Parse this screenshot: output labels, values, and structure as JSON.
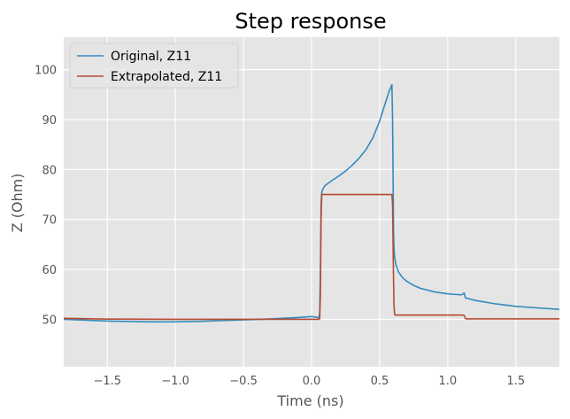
{
  "chart_data": {
    "type": "line",
    "title": "Step response",
    "xlabel": "Time (ns)",
    "ylabel": "Z (Ohm)",
    "xlim": [
      -1.82,
      1.82
    ],
    "ylim": [
      40.5,
      106.5
    ],
    "xticks": [
      -1.5,
      -1.0,
      -0.5,
      0.0,
      0.5,
      1.0,
      1.5
    ],
    "xtick_labels": [
      "−1.5",
      "−1.0",
      "−0.5",
      "0.0",
      "0.5",
      "1.0",
      "1.5"
    ],
    "yticks": [
      50,
      60,
      70,
      80,
      90,
      100
    ],
    "ytick_labels": [
      "50",
      "60",
      "70",
      "80",
      "90",
      "100"
    ],
    "grid": true,
    "legend_position": "top-left",
    "background": "#e5e5e5",
    "grid_color": "#ffffff",
    "series": [
      {
        "name": "Original, Z11",
        "color": "#348abd",
        "x": [
          -1.82,
          -1.5,
          -1.2,
          -1.0,
          -0.8,
          -0.5,
          -0.3,
          -0.1,
          0.0,
          0.04,
          0.055,
          0.06,
          0.065,
          0.07,
          0.075,
          0.085,
          0.1,
          0.15,
          0.2,
          0.25,
          0.3,
          0.35,
          0.4,
          0.45,
          0.5,
          0.53,
          0.55,
          0.57,
          0.58,
          0.59,
          0.595,
          0.6,
          0.602,
          0.605,
          0.61,
          0.62,
          0.64,
          0.67,
          0.7,
          0.75,
          0.8,
          0.9,
          1.0,
          1.1,
          1.115,
          1.12,
          1.13,
          1.2,
          1.35,
          1.5,
          1.65,
          1.82
        ],
        "y": [
          50.0,
          49.65,
          49.5,
          49.5,
          49.6,
          49.9,
          50.1,
          50.35,
          50.55,
          50.4,
          50.3,
          51.5,
          60.0,
          73.0,
          75.5,
          76.2,
          76.8,
          77.8,
          78.7,
          79.7,
          80.9,
          82.3,
          84.0,
          86.3,
          89.7,
          92.3,
          94.0,
          95.7,
          96.3,
          97.0,
          90.0,
          75.0,
          68.0,
          64.5,
          62.5,
          60.9,
          59.4,
          58.3,
          57.6,
          56.8,
          56.2,
          55.5,
          55.1,
          54.9,
          55.1,
          55.3,
          54.3,
          53.8,
          53.1,
          52.6,
          52.3,
          52.0
        ]
      },
      {
        "name": "Extrapolated, Z11",
        "color": "#b74a33",
        "x": [
          -1.82,
          -1.5,
          -1.0,
          -0.5,
          0.0,
          0.05,
          0.06,
          0.065,
          0.07,
          0.075,
          0.1,
          0.3,
          0.5,
          0.58,
          0.59,
          0.595,
          0.6,
          0.605,
          0.61,
          0.615,
          0.7,
          0.9,
          1.1,
          1.12,
          1.125,
          1.13,
          1.135,
          1.2,
          1.5,
          1.82
        ],
        "y": [
          50.2,
          50.05,
          50.0,
          50.0,
          50.0,
          50.0,
          50.1,
          55.0,
          70.0,
          75.0,
          75.0,
          75.0,
          75.0,
          75.0,
          75.0,
          73.0,
          62.0,
          53.0,
          51.0,
          50.85,
          50.85,
          50.85,
          50.85,
          50.8,
          50.5,
          50.2,
          50.1,
          50.1,
          50.1,
          50.1
        ]
      }
    ]
  }
}
